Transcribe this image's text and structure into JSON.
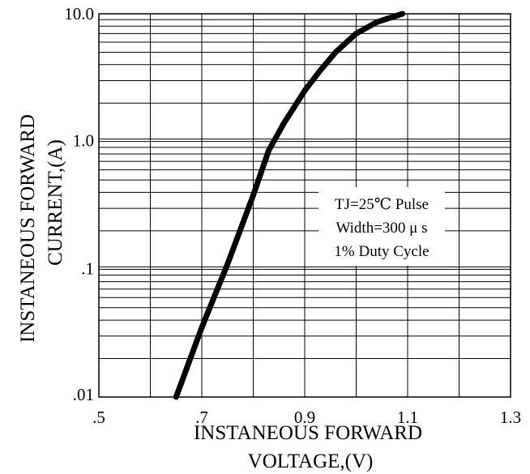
{
  "chart_data": {
    "type": "line",
    "x_axis": {
      "label_line1": "INSTANEOUS FORWARD",
      "label_line2": "VOLTAGE,(V)",
      "min": 0.5,
      "max": 1.3,
      "ticks": [
        0.5,
        0.7,
        0.9,
        1.1,
        1.3
      ],
      "tick_labels": [
        ".5",
        ".7",
        "0.9",
        "1.1",
        "1.3"
      ],
      "minor_step": 0.1
    },
    "y_axis": {
      "label_line1": "INSTANEOUS FORWARD",
      "label_line2": "CURRENT,(A)",
      "scale": "log",
      "min": 0.01,
      "max": 10,
      "ticks": [
        0.01,
        0.1,
        1,
        10
      ],
      "tick_labels": [
        ".01",
        ".1",
        "1.0",
        "10.0"
      ]
    },
    "grid": true,
    "annotation": [
      "TJ=25℃ Pulse",
      "Width=300 μ s",
      "1% Duty Cycle"
    ],
    "series": [
      {
        "color": "#000000",
        "points": [
          {
            "x": 0.65,
            "y": 0.01
          },
          {
            "x": 0.7,
            "y": 0.035
          },
          {
            "x": 0.75,
            "y": 0.11
          },
          {
            "x": 0.8,
            "y": 0.38
          },
          {
            "x": 0.83,
            "y": 0.85
          },
          {
            "x": 0.86,
            "y": 1.4
          },
          {
            "x": 0.9,
            "y": 2.5
          },
          {
            "x": 0.93,
            "y": 3.6
          },
          {
            "x": 0.96,
            "y": 5.0
          },
          {
            "x": 1.0,
            "y": 7.0
          },
          {
            "x": 1.04,
            "y": 8.6
          },
          {
            "x": 1.09,
            "y": 10.0
          }
        ]
      }
    ]
  }
}
